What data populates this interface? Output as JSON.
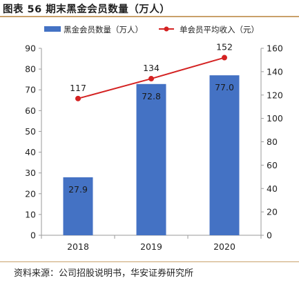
{
  "figure": {
    "title": "图表 56  期末黑金会员数量（万人）",
    "source": "资料来源：公司招股说明书，华安证券研究所"
  },
  "colors": {
    "bar": "#4472c4",
    "line": "#d42222",
    "rule": "#c9a06a"
  },
  "chart_data": {
    "type": "bar+line",
    "categories": [
      "2018",
      "2019",
      "2020"
    ],
    "series": [
      {
        "name": "黑金会员数量（万人）",
        "type": "bar",
        "axis": "left",
        "values": [
          27.9,
          72.8,
          77.0
        ],
        "labels": [
          "27.9",
          "72.8",
          "77.0"
        ]
      },
      {
        "name": "单会员平均收入（元）",
        "type": "line",
        "axis": "right",
        "values": [
          117,
          134,
          152
        ],
        "labels": [
          "117",
          "134",
          "152"
        ]
      }
    ],
    "ylim_left": [
      0,
      90
    ],
    "yticks_left": [
      "0",
      "10",
      "20",
      "30",
      "40",
      "50",
      "60",
      "70",
      "80",
      "90"
    ],
    "ylim_right": [
      0,
      160
    ],
    "yticks_right": [
      "0",
      "20",
      "40",
      "60",
      "80",
      "100",
      "120",
      "140",
      "160"
    ],
    "legend_position": "top",
    "grid": false
  }
}
